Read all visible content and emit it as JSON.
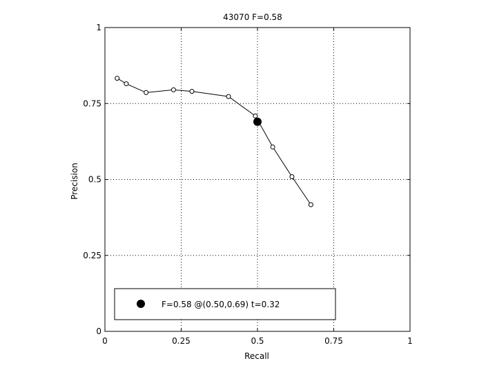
{
  "chart_data": {
    "type": "line",
    "title": "43070 F=0.58",
    "xlabel": "Recall",
    "ylabel": "Precision",
    "xlim": [
      0,
      1
    ],
    "ylim": [
      0,
      1
    ],
    "grid": true,
    "xticks": [
      0,
      0.25,
      0.5,
      0.75,
      1
    ],
    "yticks": [
      0,
      0.25,
      0.5,
      0.75,
      1
    ],
    "xtick_labels": [
      "0",
      "0.25",
      "0.5",
      "0.75",
      "1"
    ],
    "ytick_labels": [
      "0",
      "0.25",
      "0.5",
      "0.75",
      "1"
    ],
    "series": [
      {
        "marker": "open-circle",
        "color": "#000000",
        "points": [
          {
            "x": 0.04,
            "y": 0.833
          },
          {
            "x": 0.07,
            "y": 0.815
          },
          {
            "x": 0.135,
            "y": 0.786
          },
          {
            "x": 0.225,
            "y": 0.795
          },
          {
            "x": 0.285,
            "y": 0.79
          },
          {
            "x": 0.405,
            "y": 0.773
          },
          {
            "x": 0.493,
            "y": 0.709
          },
          {
            "x": 0.55,
            "y": 0.607
          },
          {
            "x": 0.613,
            "y": 0.509
          },
          {
            "x": 0.675,
            "y": 0.417
          }
        ]
      }
    ],
    "highlight": {
      "x": 0.5,
      "y": 0.69,
      "marker": "filled-circle",
      "color": "#000000"
    },
    "legend": {
      "placement": "bottom",
      "label": "F=0.58 @(0.50,0.69) t=0.32"
    }
  }
}
